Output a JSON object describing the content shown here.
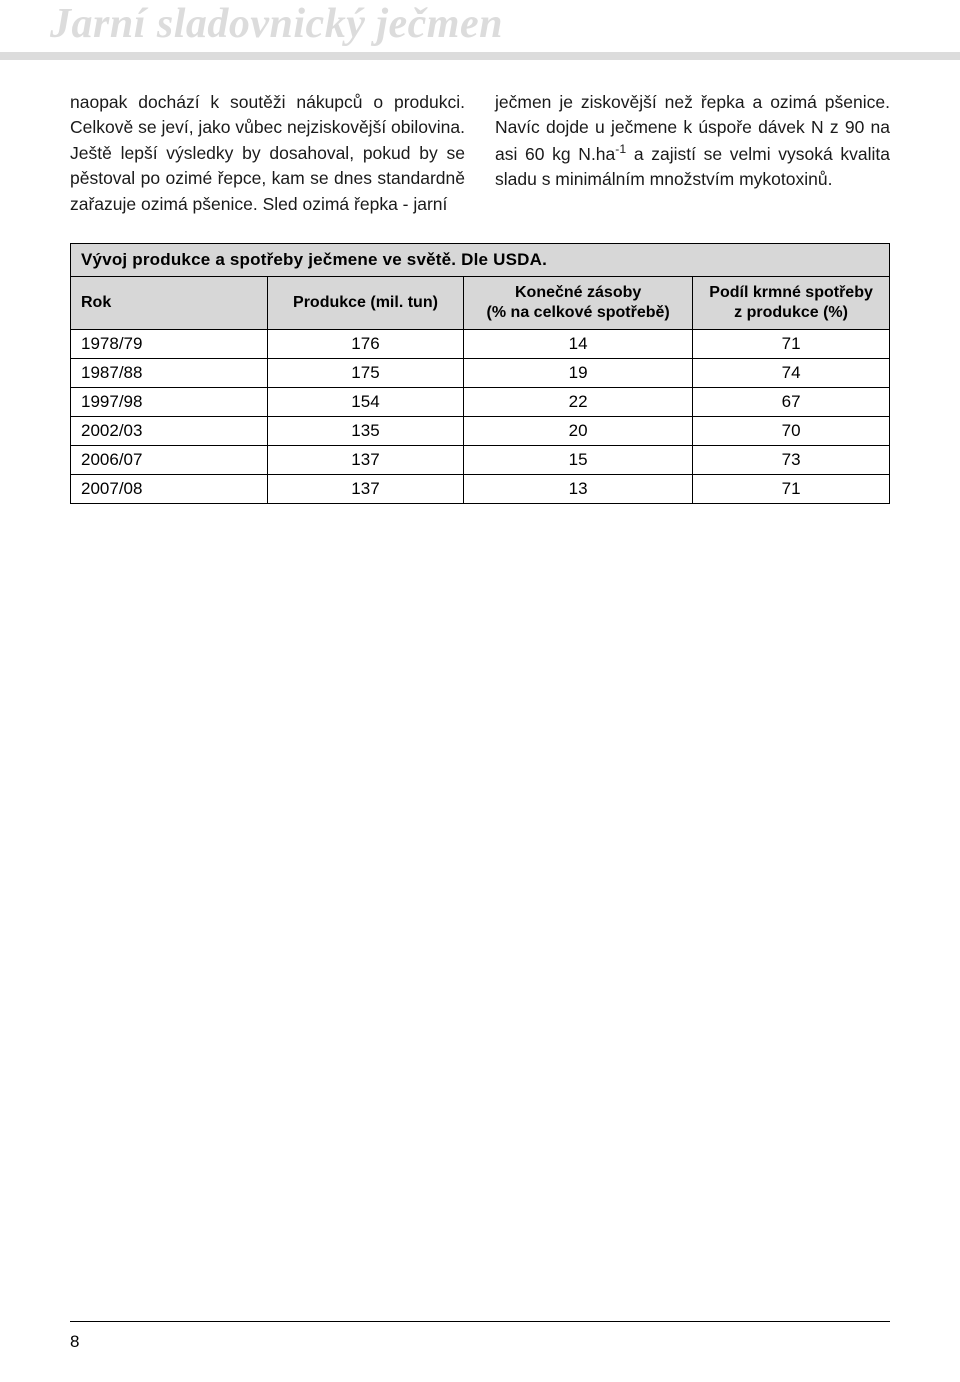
{
  "header": {
    "title": "Jarní sladovnický ječmen"
  },
  "text": {
    "left": "naopak dochází k soutěži nákupců o produkci. Celkově se jeví, jako vůbec nejziskovější obilovina. Ještě lepší výsledky by dosahoval, pokud by se pěstoval po ozimé řepce, kam se dnes standardně zařazuje ozimá pšenice. Sled ozimá řepka - jarní",
    "right_before_sup": "ječmen je ziskovější než řepka a ozimá pšenice. Navíc dojde u ječmene k úspoře dávek N z 90 na asi 60 kg N.ha",
    "right_sup": "-1",
    "right_after_sup": " a zajistí se velmi vysoká kvalita sladu s minimálním množstvím mykotoxinů."
  },
  "table": {
    "title": "Vývoj produkce a spotřeby ječmene ve světě. Dle USDA.",
    "columns": [
      "Rok",
      "Produkce (mil. tun)",
      "Konečné zásoby\n(% na celkové spotřebě)",
      "Podíl krmné spotřeby\nz produkce (%)"
    ],
    "col_widths": [
      "24%",
      "24%",
      "28%",
      "24%"
    ],
    "rows": [
      [
        "1978/79",
        "176",
        "14",
        "71"
      ],
      [
        "1987/88",
        "175",
        "19",
        "74"
      ],
      [
        "1997/98",
        "154",
        "22",
        "67"
      ],
      [
        "2002/03",
        "135",
        "20",
        "70"
      ],
      [
        "2006/07",
        "137",
        "15",
        "73"
      ],
      [
        "2007/08",
        "137",
        "13",
        "71"
      ]
    ],
    "header_bg": "#d7d7d7",
    "border_color": "#000000"
  },
  "page_number": "8"
}
